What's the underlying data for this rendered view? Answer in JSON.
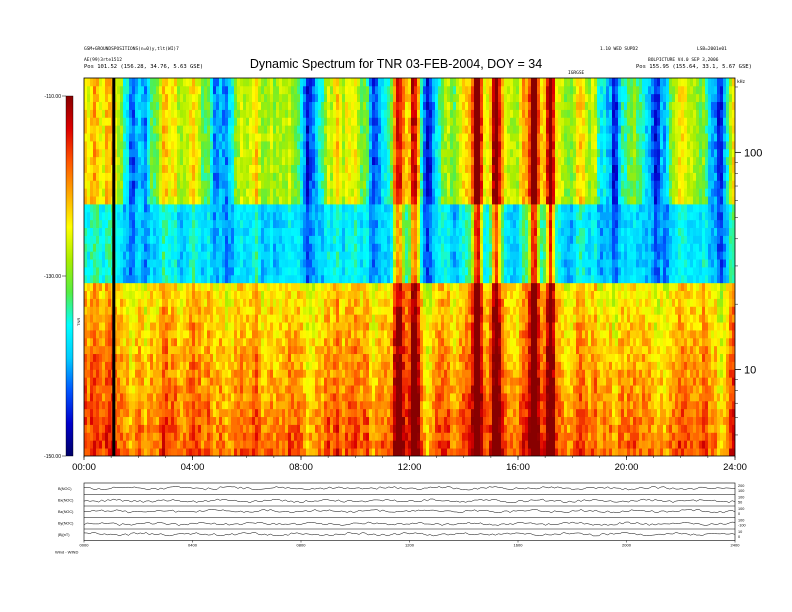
{
  "header": {
    "title": "Dynamic Spectrum for TNR 03-FEB-2004, DOY = 34",
    "left_line1": "GSM+GROUNDSPOSITIONS(n=0)y,tlt(WI)7",
    "left_line2": "AE(99)3rte1512",
    "left_line3": "Pos 101.52 (156.28, 34.76, 5.63 GSE)",
    "right_line1a": "1.10 WED SUPD2",
    "right_line1b": "LSB=2001e01",
    "right_line2": "BOLPICTURE V4.0 SEP 3,2006",
    "right_line3": "Pos 155.95 (155.64, 33.1, 5.67 GSE)",
    "center_small": "IGRGSE",
    "corner_units": "kHz"
  },
  "chart_data": {
    "type": "heatmap",
    "title": "Dynamic Spectrum for TNR 03-FEB-2004, DOY = 34",
    "x_ticks": [
      "00:00",
      "04:00",
      "08:00",
      "12:00",
      "16:00",
      "20:00",
      "24:00"
    ],
    "xlim_hours": [
      0,
      24
    ],
    "y_scale": "log",
    "ylim_khz": [
      4,
      220
    ],
    "y_tick_labels": [
      {
        "v": 100,
        "label": "100"
      },
      {
        "v": 10,
        "label": "10"
      }
    ],
    "y_unit": "kHz",
    "colorbar": {
      "label": "TNR",
      "tick_labels": [
        {
          "v": -110,
          "label": "-110.00"
        },
        {
          "v": -130,
          "label": "-130.00"
        },
        {
          "v": -150,
          "label": "-150.00"
        }
      ],
      "range": [
        -150,
        -110
      ],
      "colors": [
        "#000066",
        "#0000cc",
        "#0055ff",
        "#00ccff",
        "#00ffff",
        "#55ee44",
        "#aaee00",
        "#ffff00",
        "#ffaa00",
        "#ff5500",
        "#dd0000",
        "#880000"
      ]
    },
    "band_boundary_khz": 60,
    "bright_hours": [
      11.6,
      15.2,
      16.6,
      17.2,
      12.2,
      14.5
    ],
    "data_gap_hour": 1.1,
    "quiet_hours": [
      2.0,
      5.0,
      8.3,
      10.8,
      12.8,
      19.5,
      21.0,
      23.3
    ]
  },
  "lower_panels": {
    "rows": [
      {
        "label": "B(NOC)",
        "right_ticks": [
          "200",
          "100"
        ]
      },
      {
        "label": "Bx(NOC)",
        "right_ticks": [
          "100",
          "50"
        ]
      },
      {
        "label": "Bz(NOC)",
        "right_ticks": [
          "100",
          "0"
        ]
      },
      {
        "label": "By(NOC)",
        "right_ticks": [
          "100",
          "-100"
        ]
      },
      {
        "label": "|B|(nT)",
        "right_ticks": [
          "10",
          "0"
        ]
      }
    ],
    "x_ticks": [
      "0000",
      "0400",
      "0800",
      "1200",
      "1600",
      "2000",
      "2400"
    ],
    "footer_left": "Wind - WIND"
  }
}
